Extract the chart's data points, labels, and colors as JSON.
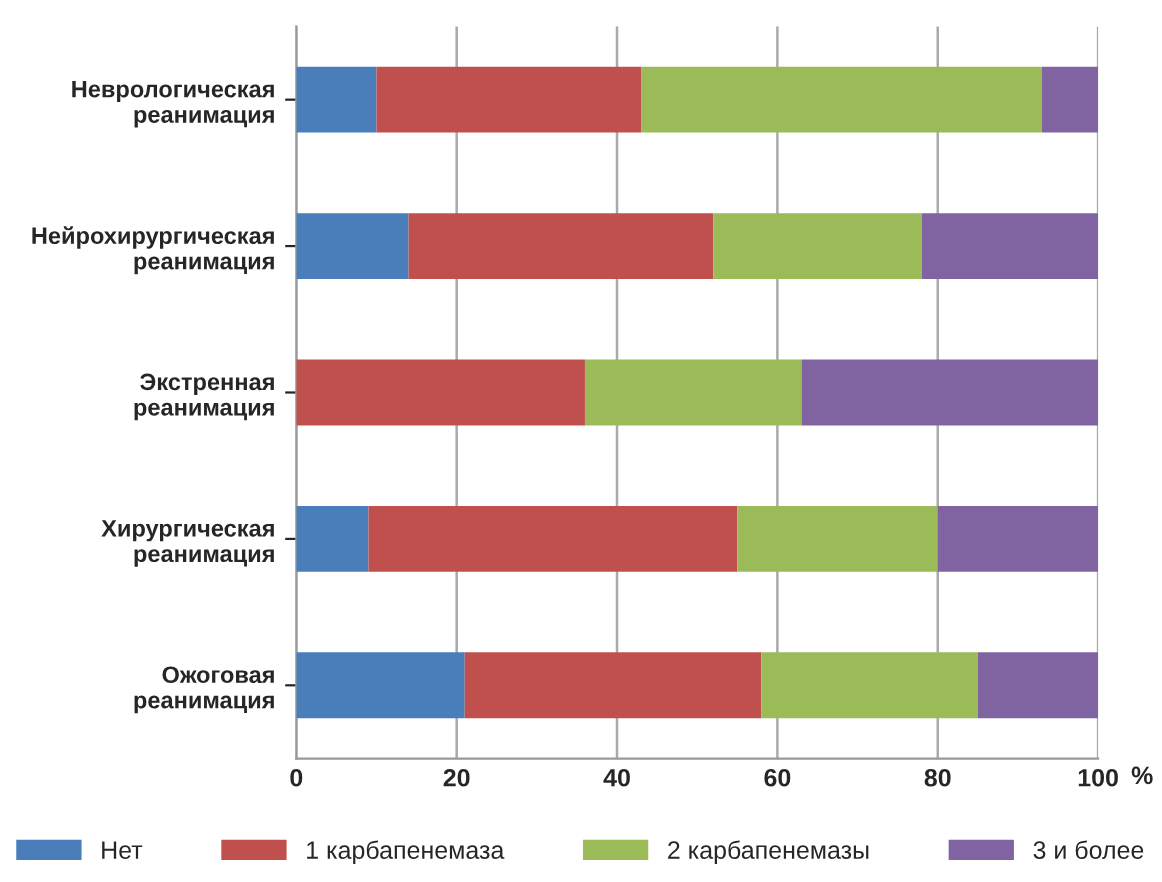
{
  "chart_data": {
    "type": "bar",
    "orientation": "horizontal",
    "stacked": true,
    "categories": [
      "Неврологическая\nреанимация",
      "Нейрохирургическая\nреанимация",
      "Экстренная\nреанимация",
      "Хирургическая\nреанимация",
      "Ожоговая\nреанимация"
    ],
    "series": [
      {
        "name": "Нет",
        "color": "#4a7ebb",
        "values": [
          10,
          14,
          0,
          9,
          21
        ]
      },
      {
        "name": "1 карбапенемаза",
        "color": "#c0504d",
        "values": [
          33,
          38,
          36,
          46,
          37
        ]
      },
      {
        "name": "2 карбапенемазы",
        "color": "#9bbb59",
        "values": [
          50,
          26,
          27,
          25,
          27
        ]
      },
      {
        "name": "3 и более",
        "color": "#8064a2",
        "values": [
          7,
          22,
          37,
          20,
          15
        ]
      }
    ],
    "xlabel": "%",
    "xlim": [
      0,
      100
    ],
    "xticks": [
      0,
      20,
      40,
      60,
      80,
      100
    ],
    "grid": "x",
    "legend": "bottom"
  }
}
